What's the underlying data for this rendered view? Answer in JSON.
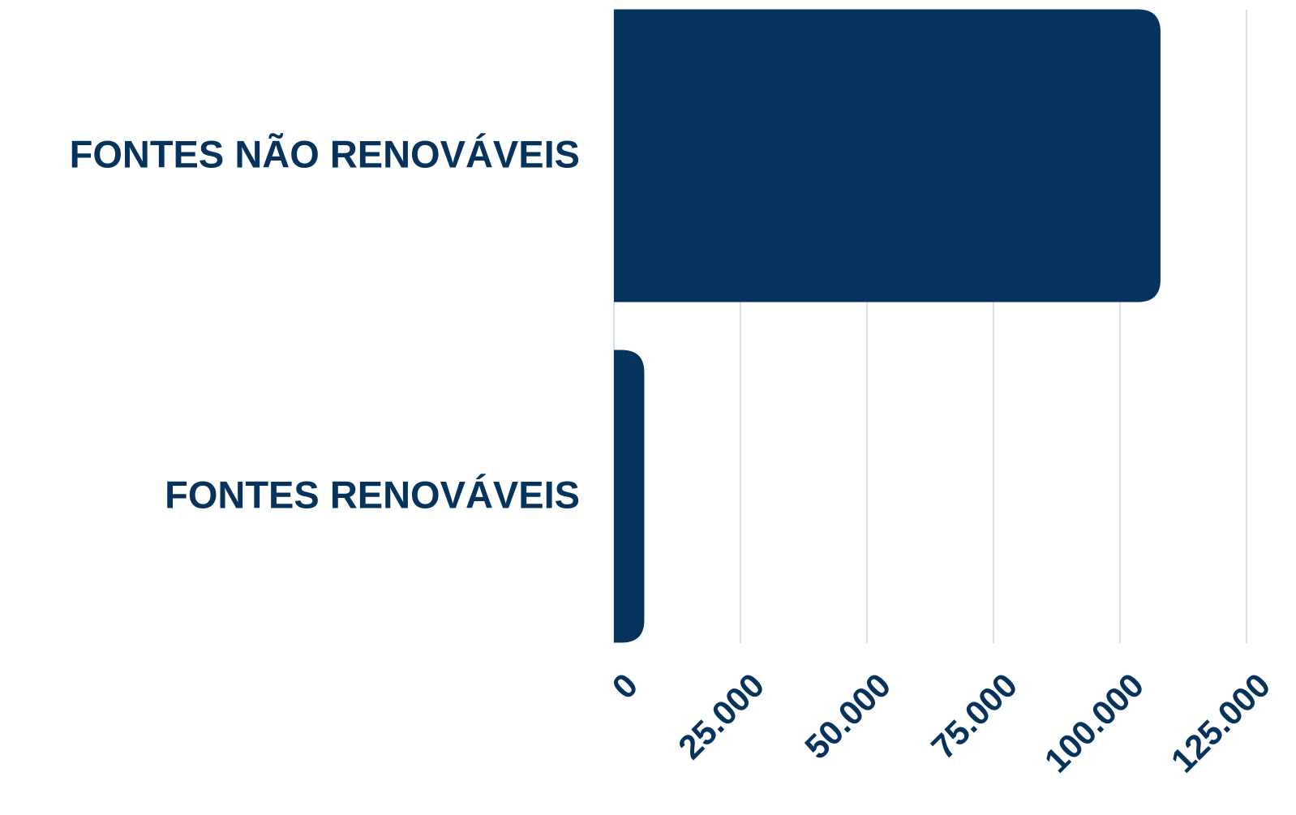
{
  "chart_data": {
    "type": "bar",
    "orientation": "horizontal",
    "categories": [
      "FONTES NÃO RENOVÁVEIS",
      "FONTES RENOVÁVEIS"
    ],
    "values": [
      108000,
      6000
    ],
    "color": "#06335c",
    "xlim": [
      0,
      125000
    ],
    "xticks": [
      0,
      {
        "value": 25000,
        "label": "25.000"
      },
      {
        "value": 50000,
        "label": "50.000"
      },
      {
        "value": 75000,
        "label": "75.000"
      },
      {
        "value": 100000,
        "label": "100.000"
      },
      {
        "value": 125000,
        "label": "125.000"
      }
    ],
    "grid": true
  }
}
